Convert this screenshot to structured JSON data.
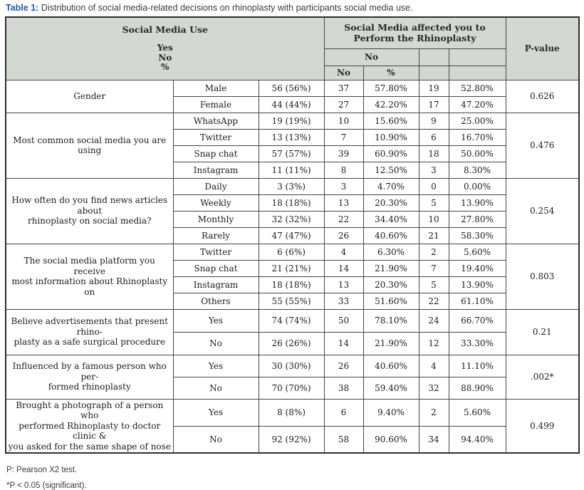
{
  "title": {
    "label": "Table 1:",
    "text": " Distribution of social media-related decisions on rhinoplasty with participants social media use."
  },
  "table": {
    "header": {
      "left_group_title": "Social Media Use",
      "left_group_sub": "Yes\nNo\n%",
      "right_group_title": "Social Media affected you to Perform the Rhinoplasty",
      "sub_no_group": "No",
      "sub_no_n": "No",
      "sub_no_pct": "%",
      "p_value": "P-value"
    },
    "sections": [
      {
        "label": "Gender",
        "p": "0.626",
        "rows": [
          {
            "category": "Male",
            "n": "56 (56%)",
            "no_n": "37",
            "no_pct": "57.80%",
            "yes_n": "19",
            "yes_pct": "52.80%"
          },
          {
            "category": "Female",
            "n": "44 (44%)",
            "no_n": "27",
            "no_pct": "42.20%",
            "yes_n": "17",
            "yes_pct": "47.20%"
          }
        ]
      },
      {
        "label": "Most common social media you are using",
        "p": "0.476",
        "rows": [
          {
            "category": "WhatsApp",
            "n": "19 (19%)",
            "no_n": "10",
            "no_pct": "15.60%",
            "yes_n": "9",
            "yes_pct": "25.00%"
          },
          {
            "category": "Twitter",
            "n": "13 (13%)",
            "no_n": "7",
            "no_pct": "10.90%",
            "yes_n": "6",
            "yes_pct": "16.70%"
          },
          {
            "category": "Snap chat",
            "n": "57 (57%)",
            "no_n": "39",
            "no_pct": "60.90%",
            "yes_n": "18",
            "yes_pct": "50.00%"
          },
          {
            "category": "Instagram",
            "n": "11 (11%)",
            "no_n": "8",
            "no_pct": "12.50%",
            "yes_n": "3",
            "yes_pct": "8.30%"
          }
        ]
      },
      {
        "label": "How often do you find news articles about\nrhinoplasty on social media?",
        "p": "0.254",
        "rows": [
          {
            "category": "Daily",
            "n": "3 (3%)",
            "no_n": "3",
            "no_pct": "4.70%",
            "yes_n": "0",
            "yes_pct": "0.00%"
          },
          {
            "category": "Weekly",
            "n": "18 (18%)",
            "no_n": "13",
            "no_pct": "20.30%",
            "yes_n": "5",
            "yes_pct": "13.90%"
          },
          {
            "category": "Monthly",
            "n": "32 (32%)",
            "no_n": "22",
            "no_pct": "34.40%",
            "yes_n": "10",
            "yes_pct": "27.80%"
          },
          {
            "category": "Rarely",
            "n": "47 (47%)",
            "no_n": "26",
            "no_pct": "40.60%",
            "yes_n": "21",
            "yes_pct": "58.30%"
          }
        ]
      },
      {
        "label": "The social media platform you receive\nmost information about Rhinoplasty on",
        "p": "0.803",
        "rows": [
          {
            "category": "Twitter",
            "n": "6 (6%)",
            "no_n": "4",
            "no_pct": "6.30%",
            "yes_n": "2",
            "yes_pct": "5.60%"
          },
          {
            "category": "Snap chat",
            "n": "21 (21%)",
            "no_n": "14",
            "no_pct": "21.90%",
            "yes_n": "7",
            "yes_pct": "19.40%"
          },
          {
            "category": "Instagram",
            "n": "18 (18%)",
            "no_n": "13",
            "no_pct": "20.30%",
            "yes_n": "5",
            "yes_pct": "13.90%"
          },
          {
            "category": "Others",
            "n": "55 (55%)",
            "no_n": "33",
            "no_pct": "51.60%",
            "yes_n": "22",
            "yes_pct": "61.10%"
          }
        ]
      },
      {
        "label": "Believe advertisements that present rhino-\nplasty as a safe surgical procedure",
        "p": "0.21",
        "rows": [
          {
            "category": "Yes",
            "n": "74 (74%)",
            "no_n": "50",
            "no_pct": "78.10%",
            "yes_n": "24",
            "yes_pct": "66.70%"
          },
          {
            "category": "No",
            "n": "26 (26%)",
            "no_n": "14",
            "no_pct": "21.90%",
            "yes_n": "12",
            "yes_pct": "33.30%"
          }
        ]
      },
      {
        "label": "Influenced by a famous person who per-\nformed rhinoplasty",
        "p": ".002*",
        "rows": [
          {
            "category": "Yes",
            "n": "30 (30%)",
            "no_n": "26",
            "no_pct": "40.60%",
            "yes_n": "4",
            "yes_pct": "11.10%"
          },
          {
            "category": "No",
            "n": "70 (70%)",
            "no_n": "38",
            "no_pct": "59.40%",
            "yes_n": "32",
            "yes_pct": "88.90%"
          }
        ]
      },
      {
        "label": "Brought a photograph of a person who\nperformed Rhinoplasty to doctor clinic &\nyou asked for the same shape of nose",
        "p": "0.499",
        "rows": [
          {
            "category": "Yes",
            "n": "8 (8%)",
            "no_n": "6",
            "no_pct": "9.40%",
            "yes_n": "2",
            "yes_pct": "5.60%"
          },
          {
            "category": "No",
            "n": "92 (92%)",
            "no_n": "58",
            "no_pct": "90.60%",
            "yes_n": "34",
            "yes_pct": "94.40%"
          }
        ]
      }
    ]
  },
  "footnotes": {
    "line1": "P: Pearson X2 test.",
    "line2": "*P < 0.05 (significant)."
  },
  "colors": {
    "header_bg": "#d4d8d2",
    "border": "#454545",
    "title_accent": "#2458a6"
  }
}
